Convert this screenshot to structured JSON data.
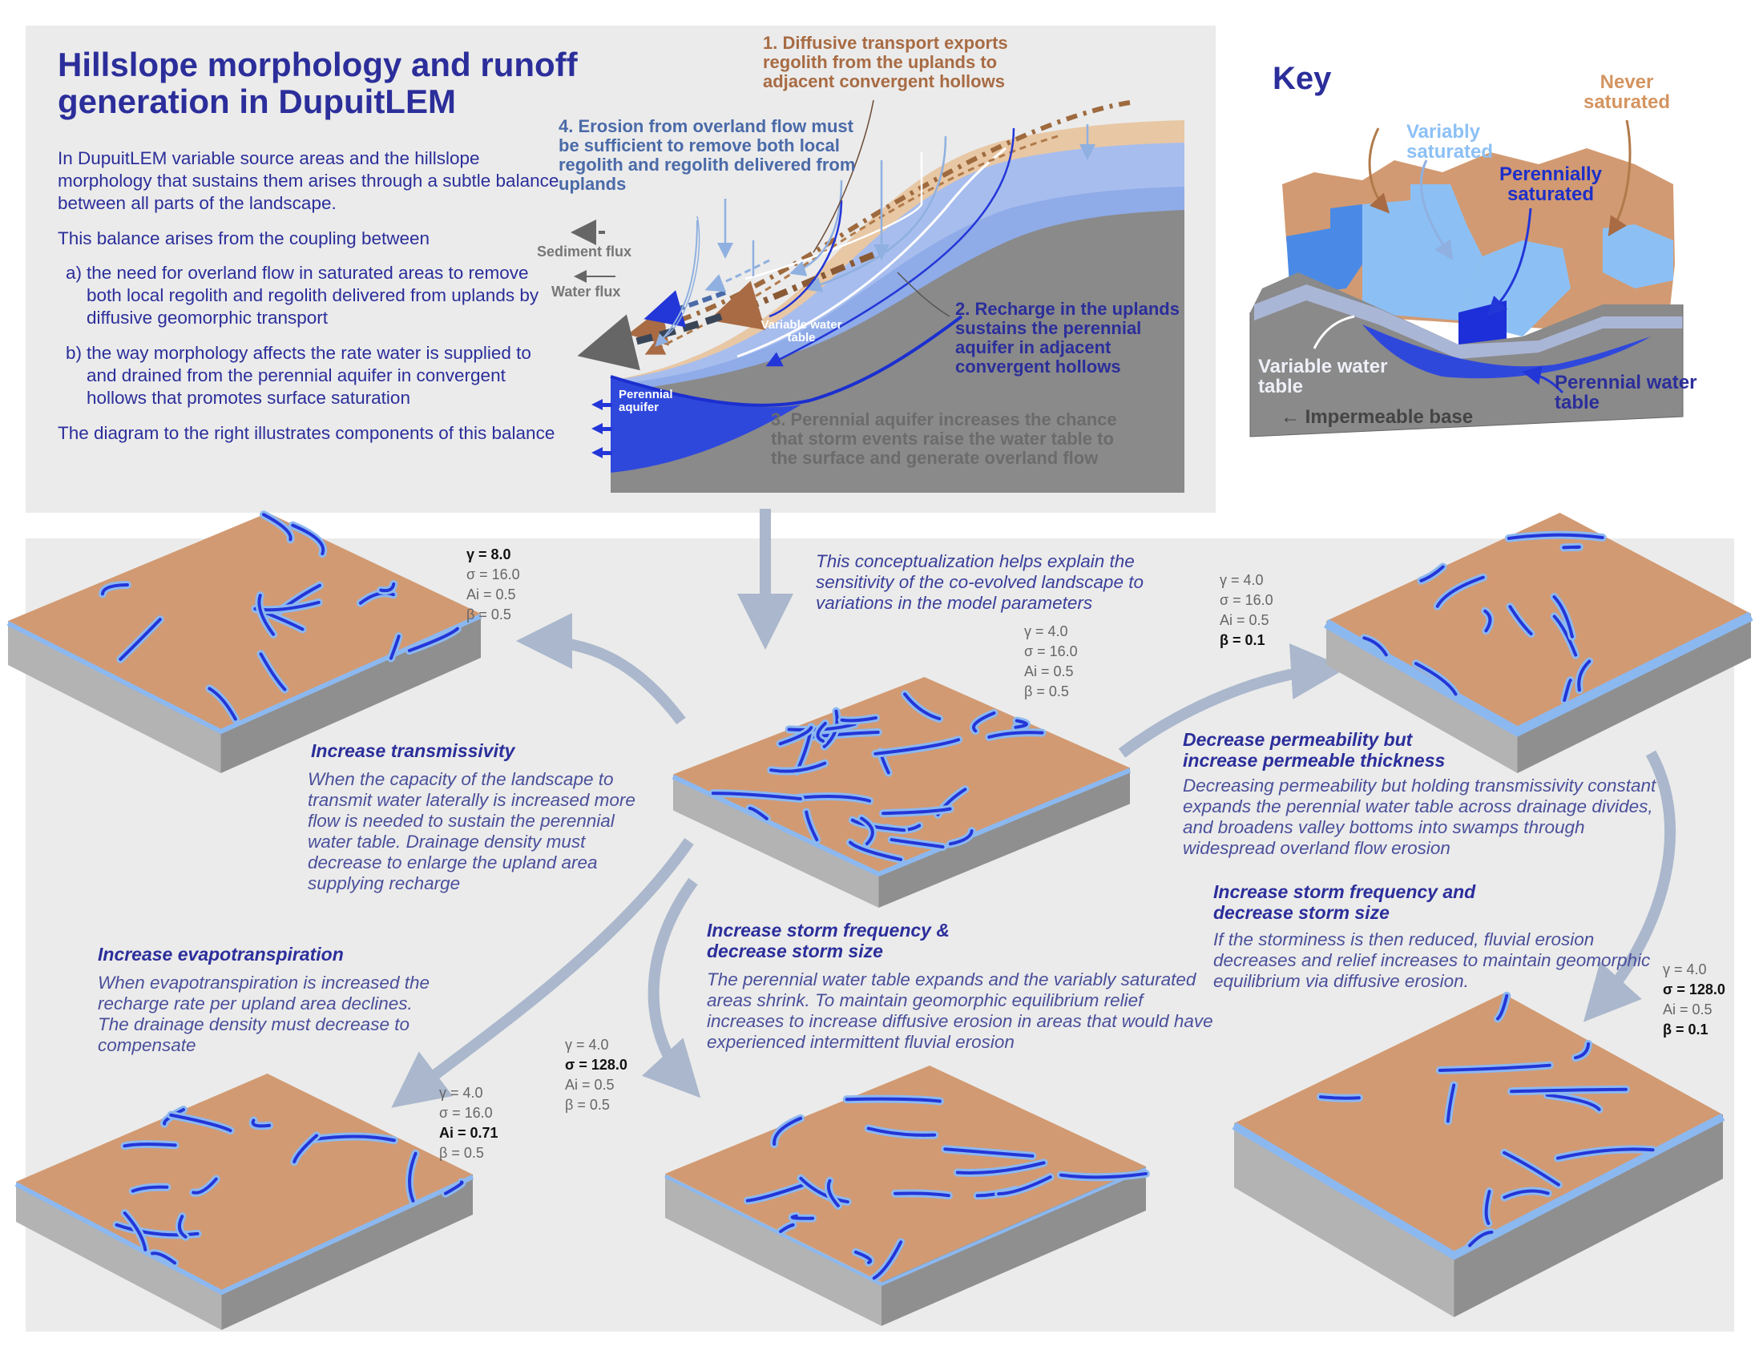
{
  "title": "Hillslope morphology and runoff generation in DupuitLEM",
  "intro": {
    "p1": "In DupuitLEM variable source areas and the hillslope morphology that sustains them arises through a subtle balance between all parts of the landscape.",
    "p2": "This balance arises from the coupling between",
    "a_label": "a)",
    "a": "the need for overland flow in saturated areas to remove both local regolith and regolith delivered from uplands by diffusive geomorphic transport",
    "b_label": "b)",
    "b": "the way morphology affects the rate water is supplied to and drained from the perennial aquifer in convergent hollows that promotes surface saturation",
    "p3": "The diagram to the right illustrates components of this balance"
  },
  "hillslope": {
    "c1": "1. Diffusive transport exports regolith from the uplands to adjacent convergent hollows",
    "c2": "2. Recharge in the uplands sustains the perennial aquifer in adjacent convergent hollows",
    "c3": "3. Perennial aquifer increases the chance that storm events raise the water table to the surface and generate overland flow",
    "c4": "4. Erosion from overland flow must be sufficient to remove both local regolith and regolith delivered from uplands",
    "sediment_flux": "Sediment flux",
    "water_flux": "Water flux",
    "variable_wt": "Variable water table",
    "perennial_aquifer": "Perennial aquifer"
  },
  "key": {
    "title": "Key",
    "never": "Never saturated",
    "variably": "Variably saturated",
    "perennially": "Perennially saturated",
    "variable_wt": "Variable water table",
    "perennial_wt": "Perennial water table",
    "impermeable": "← Impermeable base"
  },
  "center_note": "This conceptualization helps explain the sensitivity of the co-evolved landscape to variations in the model parameters",
  "params": {
    "center": [
      "γ = 4.0",
      "σ = 16.0",
      "Ai = 0.5",
      "β = 0.5"
    ],
    "tl": [
      "γ = 8.0",
      "σ = 16.0",
      "Ai = 0.5",
      "β = 0.5"
    ],
    "tr": [
      "γ = 4.0",
      "σ = 16.0",
      "Ai = 0.5",
      "β = 0.1"
    ],
    "bl": [
      "γ = 4.0",
      "σ = 16.0",
      "Ai = 0.71",
      "β = 0.5"
    ],
    "bm": [
      "γ = 4.0",
      "σ = 128.0",
      "Ai = 0.5",
      "β = 0.5"
    ],
    "br": [
      "γ = 4.0",
      "σ = 128.0",
      "Ai = 0.5",
      "β = 0.1"
    ]
  },
  "captions": {
    "transmissivity_t": "Increase transmissivity",
    "transmissivity_b": "When the capacity of the landscape to transmit water laterally is increased more flow is needed to sustain the perennial water table. Drainage density must decrease to enlarge the upland area supplying recharge",
    "perm_t": "Decrease permeability but increase permeable thickness",
    "perm_b": "Decreasing permeability but holding transmissivity constant expands the perennial water table across drainage divides, and broadens valley bottoms into swamps through widespread overland flow erosion",
    "storm_r_t": "Increase storm frequency and decrease storm size",
    "storm_r_b": "If the storminess is then reduced, fluvial erosion decreases and relief increases to maintain geomorphic equilibrium via diffusive erosion.",
    "et_t": "Increase evapotranspiration",
    "et_b": "When evapotranspiration is increased the recharge rate per upland area declines. The drainage density must decrease to compensate",
    "storm_m_t": "Increase storm frequency & decrease storm size",
    "storm_m_b": "The perennial water table expands and the variably saturated areas shrink. To maintain geomorphic equilibrium relief increases to increase diffusive erosion in areas that would have experienced intermittent fluvial erosion"
  },
  "colors": {
    "terrain": "#d29a72",
    "variably": "#8cb8f0",
    "perennial": "#2336d8",
    "base": "#9a9a9a",
    "arrow": "#aab7cc"
  }
}
